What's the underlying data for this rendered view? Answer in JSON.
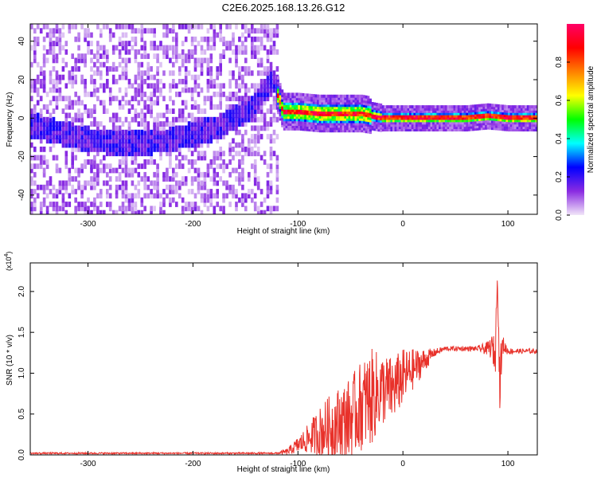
{
  "title": "C2E6.2025.168.13.26.G12",
  "chart_data": [
    {
      "type": "heatmap",
      "xlabel": "Height of straight line (km)",
      "ylabel": "Frequency (Hz)",
      "xlim": [
        -355,
        128
      ],
      "ylim": [
        -50,
        49
      ],
      "xticks": [
        -300,
        -200,
        -100,
        0,
        100
      ],
      "xtick_labels": [
        "-300",
        "-200",
        "-100",
        "0",
        "100"
      ],
      "yticks": [
        40,
        20,
        0,
        -20,
        -40
      ],
      "ytick_labels": [
        "40",
        "20",
        "0",
        "-20",
        "-40"
      ],
      "noise_region_x": [
        -355,
        -120
      ],
      "signal_region_x": [
        -120,
        128
      ],
      "ridge": {
        "x": [
          -350,
          -325,
          -300,
          -275,
          -250,
          -225,
          -200,
          -180,
          -160,
          -145,
          -135,
          -125,
          -115,
          -100,
          -80,
          -60,
          -40,
          -20,
          0,
          20,
          40,
          60,
          80,
          100,
          128
        ],
        "y": [
          -5,
          -9,
          -12,
          -14,
          -14,
          -12,
          -9,
          -6,
          0,
          5,
          12,
          20,
          3,
          3,
          2,
          2,
          2,
          0,
          0,
          0,
          0,
          0,
          1,
          0,
          0
        ]
      },
      "colorbar": {
        "label": "Normalized spectral amplitude",
        "ticks": [
          0.0,
          0.2,
          0.4,
          0.6,
          0.8
        ],
        "tick_labels": [
          "0.0",
          "0.2",
          "0.4",
          "0.6",
          "0.8"
        ],
        "range": [
          0,
          1
        ],
        "colors": [
          "#f1e6f8",
          "#8a2be2",
          "#0000ff",
          "#00ffff",
          "#00ff00",
          "#ffff00",
          "#ff8000",
          "#ff0000",
          "#ff0066"
        ]
      },
      "grid": false
    },
    {
      "type": "line",
      "xlabel": "Height of straight line (km)",
      "ylabel": "SNR (10 * v/v)",
      "ymultiplier": "(x10",
      "ymultiplier_exp": "4",
      "ymultiplier_close": ")",
      "xlim": [
        -355,
        128
      ],
      "ylim": [
        0,
        2.35
      ],
      "xticks": [
        -300,
        -200,
        -100,
        0,
        100
      ],
      "xtick_labels": [
        "-300",
        "-200",
        "-100",
        "0",
        "100"
      ],
      "yticks": [
        0.0,
        0.5,
        1.0,
        1.5,
        2.0
      ],
      "ytick_labels": [
        "0.0",
        "0.5",
        "1.0",
        "1.5",
        "2.0"
      ],
      "series": [
        {
          "color": "#e8312a",
          "x": [
            -355,
            -300,
            -250,
            -200,
            -150,
            -120,
            -110,
            -100,
            -90,
            -80,
            -70,
            -60,
            -50,
            -40,
            -30,
            -20,
            -10,
            0,
            10,
            20,
            30,
            40,
            50,
            60,
            70,
            80,
            85,
            88,
            90,
            92,
            95,
            100,
            110,
            120,
            128
          ],
          "y": [
            0.02,
            0.02,
            0.02,
            0.02,
            0.02,
            0.02,
            0.04,
            0.12,
            0.2,
            0.28,
            0.33,
            0.4,
            0.45,
            0.6,
            0.7,
            0.8,
            0.8,
            0.95,
            1.05,
            1.15,
            1.25,
            1.3,
            1.3,
            1.3,
            1.3,
            1.3,
            1.32,
            1.2,
            2.3,
            0.9,
            1.35,
            1.27,
            1.27,
            1.27,
            1.27
          ],
          "amplitude": [
            0.01,
            0.01,
            0.01,
            0.01,
            0.01,
            0.01,
            0.04,
            0.1,
            0.18,
            0.3,
            0.4,
            0.45,
            0.5,
            0.55,
            0.6,
            0.45,
            0.4,
            0.35,
            0.25,
            0.15,
            0.05,
            0.03,
            0.03,
            0.03,
            0.03,
            0.08,
            0.15,
            0.25,
            0.1,
            0.4,
            0.12,
            0.04,
            0.03,
            0.03,
            0.03
          ]
        }
      ],
      "grid": false
    }
  ]
}
